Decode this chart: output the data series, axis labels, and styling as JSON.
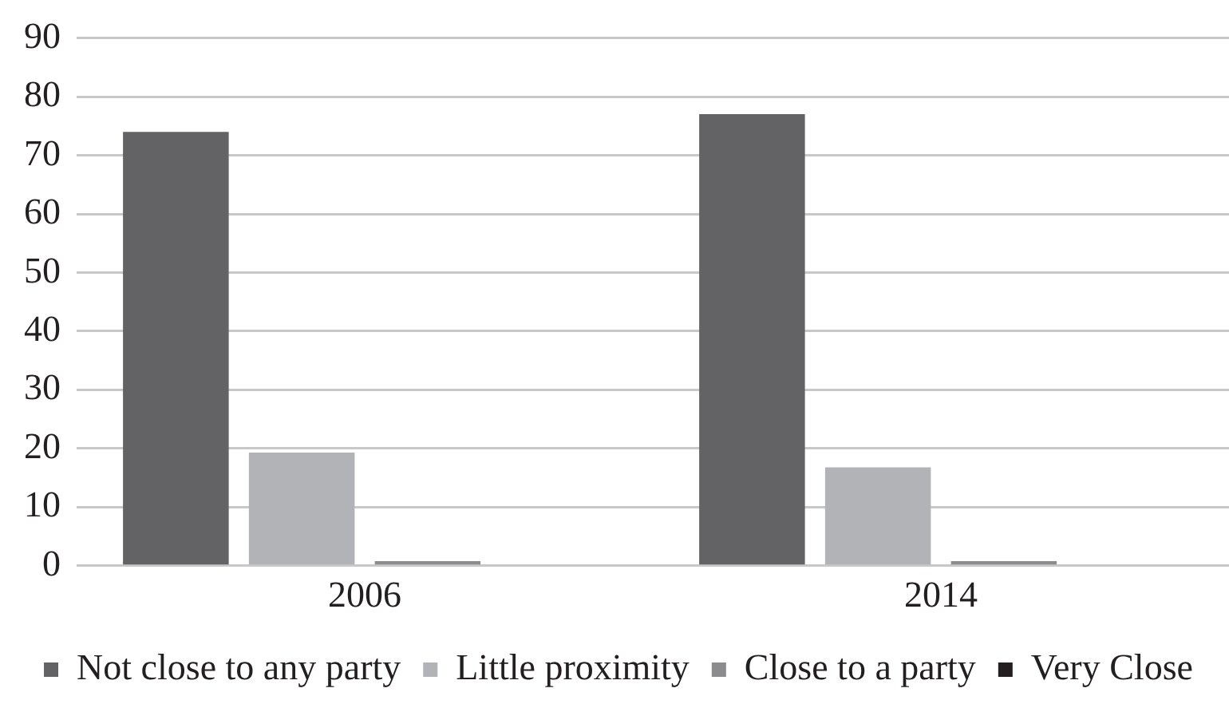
{
  "chart_data": {
    "type": "bar",
    "categories": [
      "2006",
      "2014"
    ],
    "series": [
      {
        "name": "Not close to any party",
        "color": "#636365",
        "values": [
          74,
          77
        ]
      },
      {
        "name": "Little proximity",
        "color": "#b2b3b6",
        "values": [
          19.3,
          16.8
        ]
      },
      {
        "name": "Close to a party",
        "color": "#8c8c8e",
        "values": [
          0.8,
          0.8
        ]
      },
      {
        "name": "Very Close",
        "color": "#231f20",
        "values": [
          0,
          0
        ]
      }
    ],
    "ylim": [
      0,
      90
    ],
    "yticks": [
      0,
      10,
      20,
      30,
      40,
      50,
      60,
      70,
      80,
      90
    ],
    "grid": "y",
    "legend": "bottom"
  }
}
